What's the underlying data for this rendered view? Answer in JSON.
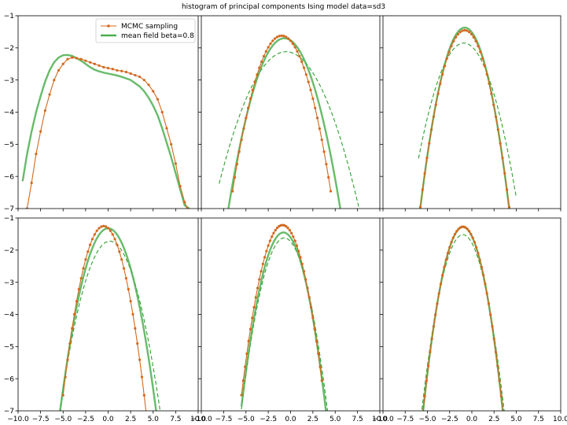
{
  "title": "histogram of principal components Ising model data=sd3",
  "legend": {
    "mcmc_label": "MCMC sampling",
    "mf_label": "mean field beta=0.8",
    "mcmc_color": "#d2691e",
    "mf_color": "#4caf50",
    "dashed_color": "#2e9e2e"
  },
  "chart_data": [
    {
      "type": "line",
      "xlim": [
        -10,
        10
      ],
      "ylim": [
        -7,
        -1
      ],
      "grid": false,
      "legend_position": "top-right",
      "xticks": [
        -10.0,
        -7.5,
        -5.0,
        -2.5,
        0.0,
        2.5,
        5.0,
        7.5,
        10.0
      ],
      "yticks": [
        -7,
        -6,
        -5,
        -4,
        -3,
        -2,
        -1
      ],
      "series": [
        {
          "name": "MCMC sampling",
          "style": "orange-dots",
          "x": [
            -9.0,
            -8.5,
            -8.0,
            -7.5,
            -7.0,
            -6.5,
            -6.0,
            -5.5,
            -5.0,
            -4.5,
            -4.0,
            -3.5,
            -3.0,
            -2.5,
            -2.0,
            -1.5,
            -1.0,
            -0.5,
            0.0,
            0.5,
            1.0,
            1.5,
            2.0,
            2.5,
            3.0,
            3.5,
            4.0,
            4.5,
            5.0,
            5.5,
            6.0,
            6.5,
            7.0,
            7.5,
            8.0,
            8.5,
            8.8
          ],
          "y": [
            -7.0,
            -6.2,
            -5.3,
            -4.6,
            -3.95,
            -3.45,
            -3.0,
            -2.7,
            -2.5,
            -2.35,
            -2.3,
            -2.32,
            -2.35,
            -2.4,
            -2.45,
            -2.5,
            -2.55,
            -2.6,
            -2.63,
            -2.66,
            -2.7,
            -2.72,
            -2.75,
            -2.8,
            -2.85,
            -2.9,
            -3.0,
            -3.15,
            -3.35,
            -3.6,
            -4.0,
            -4.5,
            -5.0,
            -5.6,
            -6.3,
            -6.8,
            -7.0
          ]
        },
        {
          "name": "mean field beta=0.8",
          "style": "green-solid",
          "x": [
            -9.5,
            -9.0,
            -8.5,
            -8.0,
            -7.5,
            -7.0,
            -6.5,
            -6.0,
            -5.5,
            -5.0,
            -4.5,
            -4.0,
            -3.5,
            -3.0,
            -2.5,
            -2.0,
            -1.5,
            -1.0,
            -0.5,
            0.0,
            0.5,
            1.0,
            1.5,
            2.0,
            2.5,
            3.0,
            3.5,
            4.0,
            4.5,
            5.0,
            5.5,
            6.0,
            6.5,
            7.0,
            7.5,
            8.0,
            8.5,
            9.0
          ],
          "y": [
            -6.15,
            -5.3,
            -4.6,
            -4.0,
            -3.5,
            -3.05,
            -2.7,
            -2.45,
            -2.3,
            -2.23,
            -2.22,
            -2.25,
            -2.32,
            -2.4,
            -2.5,
            -2.6,
            -2.68,
            -2.73,
            -2.77,
            -2.8,
            -2.83,
            -2.86,
            -2.9,
            -2.95,
            -3.0,
            -3.1,
            -3.2,
            -3.35,
            -3.55,
            -3.8,
            -4.1,
            -4.5,
            -4.95,
            -5.4,
            -5.9,
            -6.4,
            -6.9,
            -7.0
          ]
        }
      ]
    },
    {
      "type": "line",
      "xlim": [
        -10,
        10
      ],
      "ylim": [
        -7,
        -1
      ],
      "grid": false,
      "xticks": [
        -10.0,
        -7.5,
        -5.0,
        -2.5,
        0.0,
        2.5,
        5.0,
        7.5,
        10.0
      ],
      "yticks": [
        -7,
        -6,
        -5,
        -4,
        -3,
        -2,
        -1
      ],
      "series": [
        {
          "style": "orange-dots",
          "parabola": {
            "center": -1.0,
            "peak": -1.62,
            "curv": 0.16
          },
          "range": [
            -6.5,
            4.5
          ],
          "step": 0.25
        },
        {
          "style": "green-solid",
          "parabola": {
            "center": -0.7,
            "peak": -1.7,
            "curv": 0.135
          },
          "range": [
            -7.0,
            6.0
          ],
          "step": 0.1
        },
        {
          "style": "green-dashed",
          "parabola": {
            "center": -0.5,
            "peak": -2.12,
            "curv": 0.073
          },
          "range": [
            -8.0,
            8.0
          ],
          "step": 0.1
        }
      ]
    },
    {
      "type": "line",
      "xlim": [
        -10,
        10
      ],
      "ylim": [
        -7,
        -1
      ],
      "grid": false,
      "xticks": [
        -10.0,
        -7.5,
        -5.0,
        -2.5,
        0.0,
        2.5,
        5.0,
        7.5,
        10.0
      ],
      "yticks": [
        -7,
        -6,
        -5,
        -4,
        -3,
        -2,
        -1
      ],
      "series": [
        {
          "style": "orange-dots",
          "parabola": {
            "center": -0.8,
            "peak": -1.45,
            "curv": 0.22
          },
          "range": [
            -5.8,
            4.5
          ],
          "step": 0.25
        },
        {
          "style": "green-solid",
          "parabola": {
            "center": -0.8,
            "peak": -1.37,
            "curv": 0.225
          },
          "range": [
            -6.0,
            4.5
          ],
          "step": 0.1
        },
        {
          "style": "green-dashed",
          "parabola": {
            "center": -0.9,
            "peak": -1.85,
            "curv": 0.138
          },
          "range": [
            -6.0,
            5.0
          ],
          "step": 0.1
        }
      ]
    },
    {
      "type": "line",
      "xlim": [
        -10,
        10
      ],
      "ylim": [
        -7,
        -1
      ],
      "grid": false,
      "xticks": [
        -10.0,
        -7.5,
        -5.0,
        -2.5,
        0.0,
        2.5,
        5.0,
        7.5,
        10.0
      ],
      "yticks": [
        -7,
        -6,
        -5,
        -4,
        -3,
        -2,
        -1
      ],
      "series": [
        {
          "style": "orange-dots",
          "parabola": {
            "center": -0.5,
            "peak": -1.25,
            "curv": 0.26
          },
          "range": [
            -5.0,
            4.5
          ],
          "step": 0.25
        },
        {
          "style": "green-solid",
          "parabola": {
            "center": 0.0,
            "peak": -1.32,
            "curv": 0.2
          },
          "range": [
            -5.5,
            5.5
          ],
          "step": 0.1
        },
        {
          "style": "green-dashed",
          "parabola": {
            "center": 0.2,
            "peak": -1.72,
            "curv": 0.17
          },
          "range": [
            -5.5,
            6.0
          ],
          "step": 0.1
        }
      ]
    },
    {
      "type": "line",
      "xlim": [
        -10,
        10
      ],
      "ylim": [
        -7,
        -1
      ],
      "grid": false,
      "xticks": [
        -10.0,
        -7.5,
        -5.0,
        -2.5,
        0.0,
        2.5,
        5.0,
        7.5,
        10.0
      ],
      "yticks": [
        -7,
        -6,
        -5,
        -4,
        -3,
        -2,
        -1
      ],
      "series": [
        {
          "style": "orange-dots",
          "parabola": {
            "center": -0.9,
            "peak": -1.22,
            "curv": 0.25
          },
          "range": [
            -5.5,
            3.6
          ],
          "step": 0.2
        },
        {
          "style": "green-solid",
          "parabola": {
            "center": -0.8,
            "peak": -1.45,
            "curv": 0.245
          },
          "range": [
            -5.5,
            4.0
          ],
          "step": 0.1
        },
        {
          "style": "green-dashed",
          "parabola": {
            "center": -0.7,
            "peak": -1.62,
            "curv": 0.23
          },
          "range": [
            -5.6,
            4.3
          ],
          "step": 0.1
        }
      ]
    },
    {
      "type": "line",
      "xlim": [
        -10,
        10
      ],
      "ylim": [
        -7,
        -1
      ],
      "grid": false,
      "xticks": [
        -10.0,
        -7.5,
        -5.0,
        -2.5,
        0.0,
        2.5,
        5.0,
        7.5,
        10.0
      ],
      "yticks": [
        -7,
        -6,
        -5,
        -4,
        -3,
        -2,
        -1
      ],
      "series": [
        {
          "style": "orange-dots",
          "parabola": {
            "center": -1.0,
            "peak": -1.27,
            "curv": 0.285
          },
          "range": [
            -5.5,
            3.8
          ],
          "step": 0.2
        },
        {
          "style": "green-solid",
          "parabola": {
            "center": -1.0,
            "peak": -1.28,
            "curv": 0.285
          },
          "range": [
            -5.5,
            3.8
          ],
          "step": 0.1
        },
        {
          "style": "green-dashed",
          "parabola": {
            "center": -1.0,
            "peak": -1.52,
            "curv": 0.255
          },
          "range": [
            -5.7,
            4.0
          ],
          "step": 0.1
        }
      ]
    }
  ]
}
